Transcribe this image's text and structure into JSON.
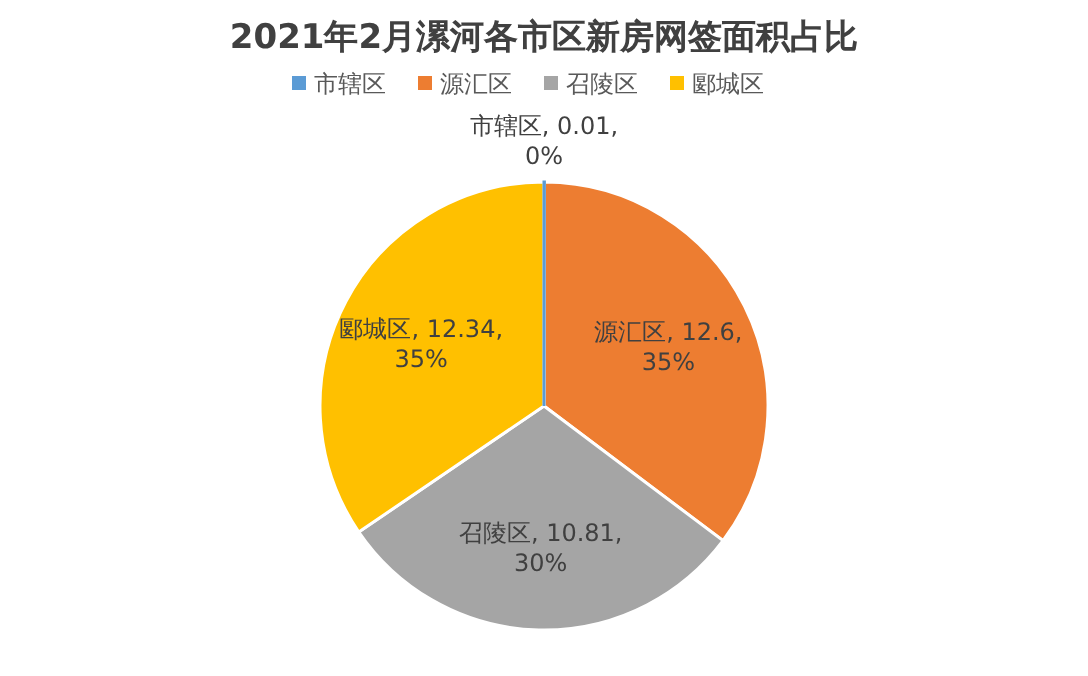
{
  "chart_data": {
    "type": "pie",
    "title": "2021年2月漯河各市区新房网签面积占比",
    "categories": [
      "市辖区",
      "源汇区",
      "召陵区",
      "郾城区"
    ],
    "values": [
      0.01,
      12.6,
      10.81,
      12.34
    ],
    "colors": [
      "#5b9bd5",
      "#ed7d31",
      "#a5a5a5",
      "#ffc000"
    ],
    "value_labels": [
      "市辖区, 0.01, 0%",
      "源汇区, 12.6, 35%",
      "召陵区, 10.81, 30%",
      "郾城区, 12.34, 35%"
    ],
    "legend": "top"
  }
}
